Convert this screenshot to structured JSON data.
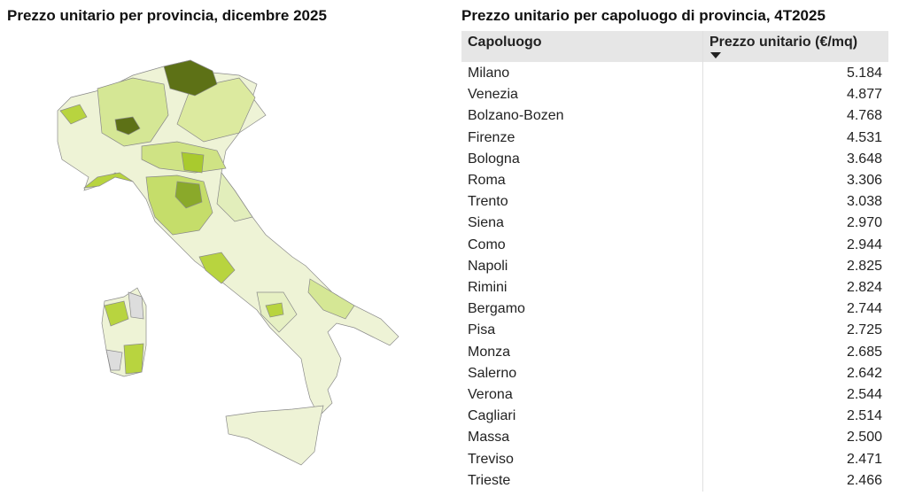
{
  "map": {
    "title": "Prezzo unitario per provincia, dicembre 2025"
  },
  "table": {
    "title": "Prezzo unitario per capoluogo di provincia, 4T2025",
    "header": [
      "Capoluogo",
      "Prezzo unitario (€/mq)"
    ],
    "rows": [
      [
        "Milano",
        "5.184"
      ],
      [
        "Venezia",
        "4.877"
      ],
      [
        "Bolzano-Bozen",
        "4.768"
      ],
      [
        "Firenze",
        "4.531"
      ],
      [
        "Bologna",
        "3.648"
      ],
      [
        "Roma",
        "3.306"
      ],
      [
        "Trento",
        "3.038"
      ],
      [
        "Siena",
        "2.970"
      ],
      [
        "Como",
        "2.944"
      ],
      [
        "Napoli",
        "2.825"
      ],
      [
        "Rimini",
        "2.824"
      ],
      [
        "Bergamo",
        "2.744"
      ],
      [
        "Pisa",
        "2.725"
      ],
      [
        "Monza",
        "2.685"
      ],
      [
        "Salerno",
        "2.642"
      ],
      [
        "Verona",
        "2.544"
      ],
      [
        "Cagliari",
        "2.514"
      ],
      [
        "Massa",
        "2.500"
      ],
      [
        "Treviso",
        "2.471"
      ],
      [
        "Trieste",
        "2.466"
      ]
    ]
  }
}
